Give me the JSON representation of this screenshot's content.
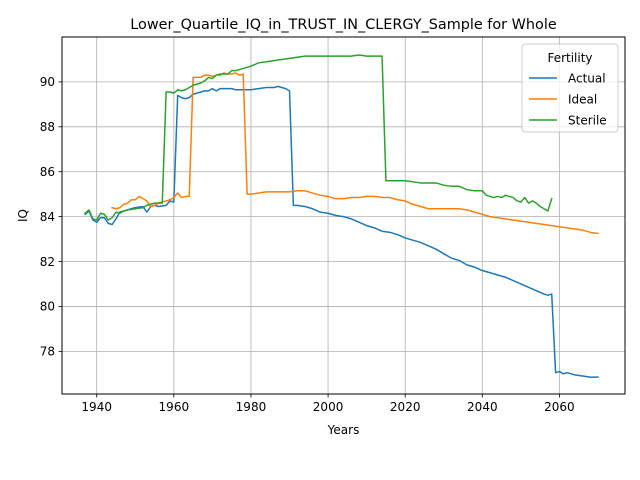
{
  "chart_data": {
    "type": "line",
    "title": "Lower_Quartile_IQ_in_TRUST_IN_CLERGY_Sample for Whole",
    "xlabel": "Years",
    "ylabel": "IQ",
    "xlim": [
      1931,
      2077
    ],
    "ylim": [
      76.1,
      92.0
    ],
    "xticks": [
      1940,
      1960,
      1980,
      2000,
      2020,
      2040,
      2060
    ],
    "yticks": [
      78,
      80,
      82,
      84,
      86,
      88,
      90
    ],
    "grid": true,
    "legend": {
      "title": "Fertility",
      "placement": "top-right"
    },
    "series": [
      {
        "name": "Actual",
        "color": "#1f77b4",
        "points": [
          [
            1937,
            84.1
          ],
          [
            1938,
            84.25
          ],
          [
            1939,
            83.85
          ],
          [
            1940,
            83.75
          ],
          [
            1941,
            83.95
          ],
          [
            1942,
            83.95
          ],
          [
            1943,
            83.7
          ],
          [
            1944,
            83.65
          ],
          [
            1945,
            83.9
          ],
          [
            1946,
            84.2
          ],
          [
            1947,
            84.25
          ],
          [
            1948,
            84.3
          ],
          [
            1950,
            84.4
          ],
          [
            1952,
            84.45
          ],
          [
            1953,
            84.2
          ],
          [
            1954,
            84.45
          ],
          [
            1955,
            84.5
          ],
          [
            1956,
            84.45
          ],
          [
            1958,
            84.5
          ],
          [
            1959,
            84.7
          ],
          [
            1960,
            84.65
          ],
          [
            1961,
            89.4
          ],
          [
            1962,
            89.3
          ],
          [
            1963,
            89.25
          ],
          [
            1964,
            89.3
          ],
          [
            1965,
            89.45
          ],
          [
            1966,
            89.5
          ],
          [
            1967,
            89.55
          ],
          [
            1968,
            89.6
          ],
          [
            1969,
            89.6
          ],
          [
            1970,
            89.7
          ],
          [
            1971,
            89.6
          ],
          [
            1972,
            89.7
          ],
          [
            1973,
            89.7
          ],
          [
            1974,
            89.7
          ],
          [
            1975,
            89.7
          ],
          [
            1976,
            89.65
          ],
          [
            1978,
            89.65
          ],
          [
            1980,
            89.65
          ],
          [
            1982,
            89.7
          ],
          [
            1984,
            89.75
          ],
          [
            1986,
            89.75
          ],
          [
            1987,
            89.8
          ],
          [
            1988,
            89.75
          ],
          [
            1989,
            89.7
          ],
          [
            1990,
            89.6
          ],
          [
            1991,
            84.5
          ],
          [
            1992,
            84.5
          ],
          [
            1994,
            84.45
          ],
          [
            1996,
            84.35
          ],
          [
            1998,
            84.2
          ],
          [
            2000,
            84.15
          ],
          [
            2002,
            84.05
          ],
          [
            2004,
            84.0
          ],
          [
            2006,
            83.9
          ],
          [
            2008,
            83.75
          ],
          [
            2010,
            83.6
          ],
          [
            2012,
            83.5
          ],
          [
            2014,
            83.35
          ],
          [
            2016,
            83.3
          ],
          [
            2018,
            83.2
          ],
          [
            2020,
            83.05
          ],
          [
            2022,
            82.95
          ],
          [
            2024,
            82.85
          ],
          [
            2026,
            82.7
          ],
          [
            2028,
            82.55
          ],
          [
            2030,
            82.35
          ],
          [
            2032,
            82.15
          ],
          [
            2034,
            82.05
          ],
          [
            2036,
            81.85
          ],
          [
            2038,
            81.75
          ],
          [
            2040,
            81.6
          ],
          [
            2042,
            81.5
          ],
          [
            2044,
            81.4
          ],
          [
            2046,
            81.3
          ],
          [
            2048,
            81.15
          ],
          [
            2050,
            81.0
          ],
          [
            2052,
            80.85
          ],
          [
            2054,
            80.7
          ],
          [
            2056,
            80.55
          ],
          [
            2057,
            80.5
          ],
          [
            2058,
            80.55
          ],
          [
            2059,
            77.05
          ],
          [
            2060,
            77.1
          ],
          [
            2061,
            77.0
          ],
          [
            2062,
            77.05
          ],
          [
            2064,
            76.95
          ],
          [
            2066,
            76.9
          ],
          [
            2068,
            76.85
          ],
          [
            2070,
            76.85
          ]
        ]
      },
      {
        "name": "Ideal",
        "color": "#ff7f0e",
        "points": [
          [
            1944,
            84.4
          ],
          [
            1945,
            84.35
          ],
          [
            1946,
            84.4
          ],
          [
            1947,
            84.55
          ],
          [
            1948,
            84.6
          ],
          [
            1949,
            84.75
          ],
          [
            1950,
            84.75
          ],
          [
            1951,
            84.9
          ],
          [
            1952,
            84.8
          ],
          [
            1953,
            84.7
          ],
          [
            1954,
            84.45
          ],
          [
            1955,
            84.5
          ],
          [
            1956,
            84.6
          ],
          [
            1957,
            84.65
          ],
          [
            1958,
            84.7
          ],
          [
            1959,
            84.75
          ],
          [
            1960,
            84.85
          ],
          [
            1961,
            85.05
          ],
          [
            1962,
            84.85
          ],
          [
            1963,
            84.9
          ],
          [
            1964,
            84.9
          ],
          [
            1965,
            90.2
          ],
          [
            1966,
            90.2
          ],
          [
            1967,
            90.2
          ],
          [
            1968,
            90.3
          ],
          [
            1969,
            90.3
          ],
          [
            1970,
            90.25
          ],
          [
            1971,
            90.3
          ],
          [
            1972,
            90.3
          ],
          [
            1973,
            90.4
          ],
          [
            1974,
            90.35
          ],
          [
            1975,
            90.35
          ],
          [
            1976,
            90.4
          ],
          [
            1977,
            90.3
          ],
          [
            1978,
            90.35
          ],
          [
            1979,
            85.0
          ],
          [
            1980,
            85.0
          ],
          [
            1982,
            85.05
          ],
          [
            1984,
            85.1
          ],
          [
            1986,
            85.1
          ],
          [
            1988,
            85.1
          ],
          [
            1990,
            85.1
          ],
          [
            1992,
            85.15
          ],
          [
            1994,
            85.15
          ],
          [
            1996,
            85.05
          ],
          [
            1998,
            84.95
          ],
          [
            2000,
            84.9
          ],
          [
            2002,
            84.8
          ],
          [
            2004,
            84.8
          ],
          [
            2006,
            84.85
          ],
          [
            2008,
            84.85
          ],
          [
            2010,
            84.9
          ],
          [
            2012,
            84.9
          ],
          [
            2014,
            84.85
          ],
          [
            2016,
            84.85
          ],
          [
            2018,
            84.75
          ],
          [
            2020,
            84.7
          ],
          [
            2022,
            84.55
          ],
          [
            2024,
            84.45
          ],
          [
            2026,
            84.35
          ],
          [
            2028,
            84.35
          ],
          [
            2030,
            84.35
          ],
          [
            2032,
            84.35
          ],
          [
            2034,
            84.35
          ],
          [
            2036,
            84.3
          ],
          [
            2038,
            84.2
          ],
          [
            2040,
            84.1
          ],
          [
            2042,
            84.0
          ],
          [
            2044,
            83.95
          ],
          [
            2046,
            83.9
          ],
          [
            2048,
            83.85
          ],
          [
            2050,
            83.8
          ],
          [
            2052,
            83.75
          ],
          [
            2054,
            83.7
          ],
          [
            2056,
            83.65
          ],
          [
            2058,
            83.6
          ],
          [
            2060,
            83.55
          ],
          [
            2062,
            83.5
          ],
          [
            2064,
            83.45
          ],
          [
            2066,
            83.4
          ],
          [
            2068,
            83.3
          ],
          [
            2070,
            83.25
          ]
        ]
      },
      {
        "name": "Sterile",
        "color": "#2ca02c",
        "points": [
          [
            1937,
            84.15
          ],
          [
            1938,
            84.3
          ],
          [
            1939,
            83.9
          ],
          [
            1940,
            83.85
          ],
          [
            1941,
            84.15
          ],
          [
            1942,
            84.1
          ],
          [
            1943,
            83.85
          ],
          [
            1944,
            83.95
          ],
          [
            1945,
            84.2
          ],
          [
            1946,
            84.15
          ],
          [
            1947,
            84.25
          ],
          [
            1948,
            84.3
          ],
          [
            1950,
            84.35
          ],
          [
            1952,
            84.4
          ],
          [
            1953,
            84.5
          ],
          [
            1954,
            84.55
          ],
          [
            1955,
            84.6
          ],
          [
            1956,
            84.6
          ],
          [
            1957,
            84.6
          ],
          [
            1958,
            89.55
          ],
          [
            1959,
            89.55
          ],
          [
            1960,
            89.5
          ],
          [
            1961,
            89.65
          ],
          [
            1962,
            89.6
          ],
          [
            1963,
            89.65
          ],
          [
            1964,
            89.75
          ],
          [
            1965,
            89.85
          ],
          [
            1966,
            89.9
          ],
          [
            1967,
            89.95
          ],
          [
            1968,
            90.05
          ],
          [
            1969,
            90.2
          ],
          [
            1970,
            90.15
          ],
          [
            1971,
            90.3
          ],
          [
            1972,
            90.35
          ],
          [
            1973,
            90.35
          ],
          [
            1974,
            90.35
          ],
          [
            1975,
            90.5
          ],
          [
            1976,
            90.5
          ],
          [
            1977,
            90.55
          ],
          [
            1978,
            90.6
          ],
          [
            1980,
            90.7
          ],
          [
            1982,
            90.85
          ],
          [
            1984,
            90.9
          ],
          [
            1986,
            90.95
          ],
          [
            1988,
            91.0
          ],
          [
            1990,
            91.05
          ],
          [
            1992,
            91.1
          ],
          [
            1994,
            91.15
          ],
          [
            1996,
            91.15
          ],
          [
            1998,
            91.15
          ],
          [
            2000,
            91.15
          ],
          [
            2002,
            91.15
          ],
          [
            2004,
            91.15
          ],
          [
            2006,
            91.15
          ],
          [
            2008,
            91.2
          ],
          [
            2010,
            91.15
          ],
          [
            2012,
            91.15
          ],
          [
            2014,
            91.15
          ],
          [
            2015,
            85.6
          ],
          [
            2016,
            85.6
          ],
          [
            2018,
            85.6
          ],
          [
            2020,
            85.6
          ],
          [
            2022,
            85.55
          ],
          [
            2024,
            85.5
          ],
          [
            2026,
            85.5
          ],
          [
            2028,
            85.5
          ],
          [
            2030,
            85.4
          ],
          [
            2032,
            85.35
          ],
          [
            2034,
            85.35
          ],
          [
            2036,
            85.2
          ],
          [
            2038,
            85.15
          ],
          [
            2040,
            85.15
          ],
          [
            2041,
            84.95
          ],
          [
            2042,
            84.9
          ],
          [
            2043,
            84.85
          ],
          [
            2044,
            84.9
          ],
          [
            2045,
            84.85
          ],
          [
            2046,
            84.95
          ],
          [
            2047,
            84.9
          ],
          [
            2048,
            84.85
          ],
          [
            2049,
            84.7
          ],
          [
            2050,
            84.65
          ],
          [
            2051,
            84.85
          ],
          [
            2052,
            84.6
          ],
          [
            2053,
            84.7
          ],
          [
            2054,
            84.6
          ],
          [
            2055,
            84.45
          ],
          [
            2056,
            84.35
          ],
          [
            2057,
            84.25
          ],
          [
            2058,
            84.8
          ]
        ]
      }
    ]
  }
}
